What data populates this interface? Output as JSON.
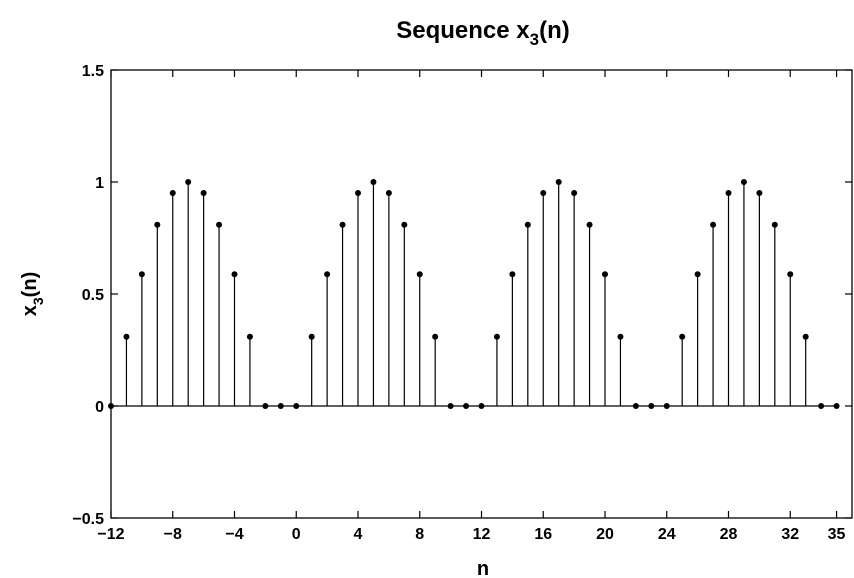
{
  "chart_data": {
    "type": "stem",
    "title": "Sequence x",
    "title_sub": "3",
    "title_suffix": "(n)",
    "xlabel": "n",
    "ylabel": "x",
    "ylabel_sub": "3",
    "ylabel_suffix": "(n)",
    "xlim": [
      -12,
      36
    ],
    "ylim": [
      -0.5,
      1.5
    ],
    "xticks": [
      -12,
      -8,
      -4,
      0,
      4,
      8,
      12,
      16,
      20,
      24,
      28,
      32,
      35
    ],
    "xtick_labels": [
      "−12",
      "−8",
      "−4",
      "0",
      "4",
      "8",
      "12",
      "16",
      "20",
      "24",
      "28",
      "32",
      "35"
    ],
    "yticks": [
      -0.5,
      0,
      0.5,
      1,
      1.5
    ],
    "ytick_labels": [
      "−0.5",
      "0",
      "0.5",
      "1",
      "1.5"
    ],
    "grid": false,
    "color": "#000000",
    "x": [
      -12,
      -11,
      -10,
      -9,
      -8,
      -7,
      -6,
      -5,
      -4,
      -3,
      -2,
      -1,
      0,
      1,
      2,
      3,
      4,
      5,
      6,
      7,
      8,
      9,
      10,
      11,
      12,
      13,
      14,
      15,
      16,
      17,
      18,
      19,
      20,
      21,
      22,
      23,
      24,
      25,
      26,
      27,
      28,
      29,
      30,
      31,
      32,
      33,
      34,
      35
    ],
    "y": [
      0,
      0.309,
      0.588,
      0.809,
      0.951,
      1,
      0.951,
      0.809,
      0.588,
      0.309,
      0,
      0,
      0,
      0.309,
      0.588,
      0.809,
      0.951,
      1,
      0.951,
      0.809,
      0.588,
      0.309,
      0,
      0,
      0,
      0.309,
      0.588,
      0.809,
      0.951,
      1,
      0.951,
      0.809,
      0.588,
      0.309,
      0,
      0,
      0,
      0.309,
      0.588,
      0.809,
      0.951,
      1,
      0.951,
      0.809,
      0.588,
      0.309,
      0,
      0
    ]
  }
}
